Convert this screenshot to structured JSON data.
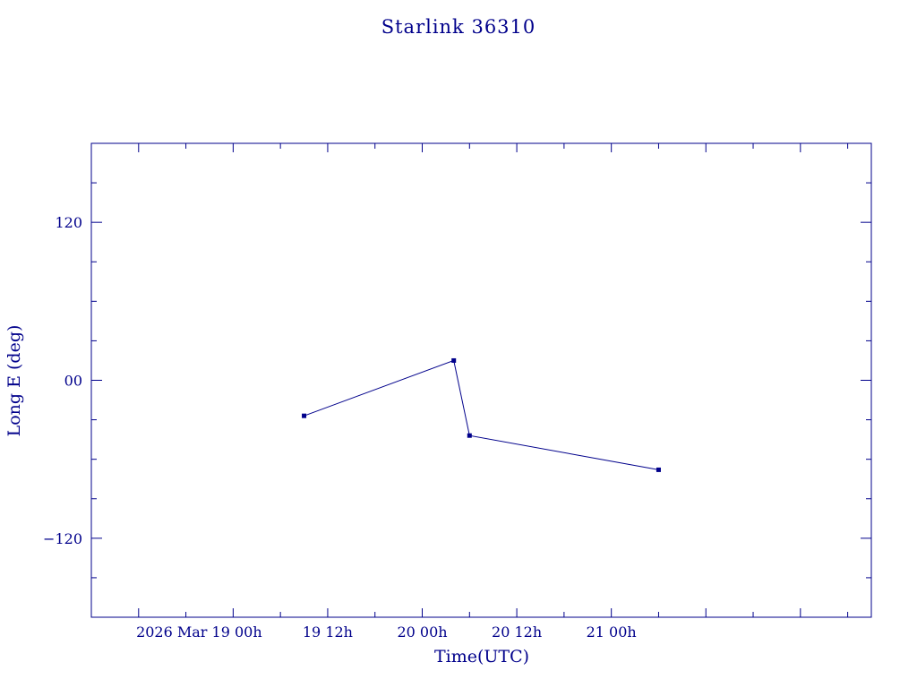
{
  "chart_data": {
    "type": "line",
    "title": "Starlink 36310",
    "xlabel": "Time(UTC)",
    "ylabel": "Long E (deg)",
    "x_tick_labels": [
      "2026 Mar 19  00h",
      "19  12h",
      "20  00h",
      "20  12h",
      "21  00h"
    ],
    "y_tick_labels": [
      "120",
      "00",
      "−120"
    ],
    "y_ticks": [
      120,
      0,
      -120
    ],
    "ylim": [
      -180,
      180
    ],
    "x_range_hours_from_2026_03_19_00h": [
      -18,
      81
    ],
    "grid": false,
    "series": [
      {
        "points": [
          {
            "t": "2026-03-19 09:00",
            "lon": -27
          },
          {
            "t": "2026-03-19 28:00",
            "lon": 15
          },
          {
            "t": "2026-03-20 06:00",
            "lon": -42
          },
          {
            "t": "2026-03-20 30:00",
            "lon": -68
          }
        ]
      }
    ],
    "line_color": "#00008b"
  }
}
